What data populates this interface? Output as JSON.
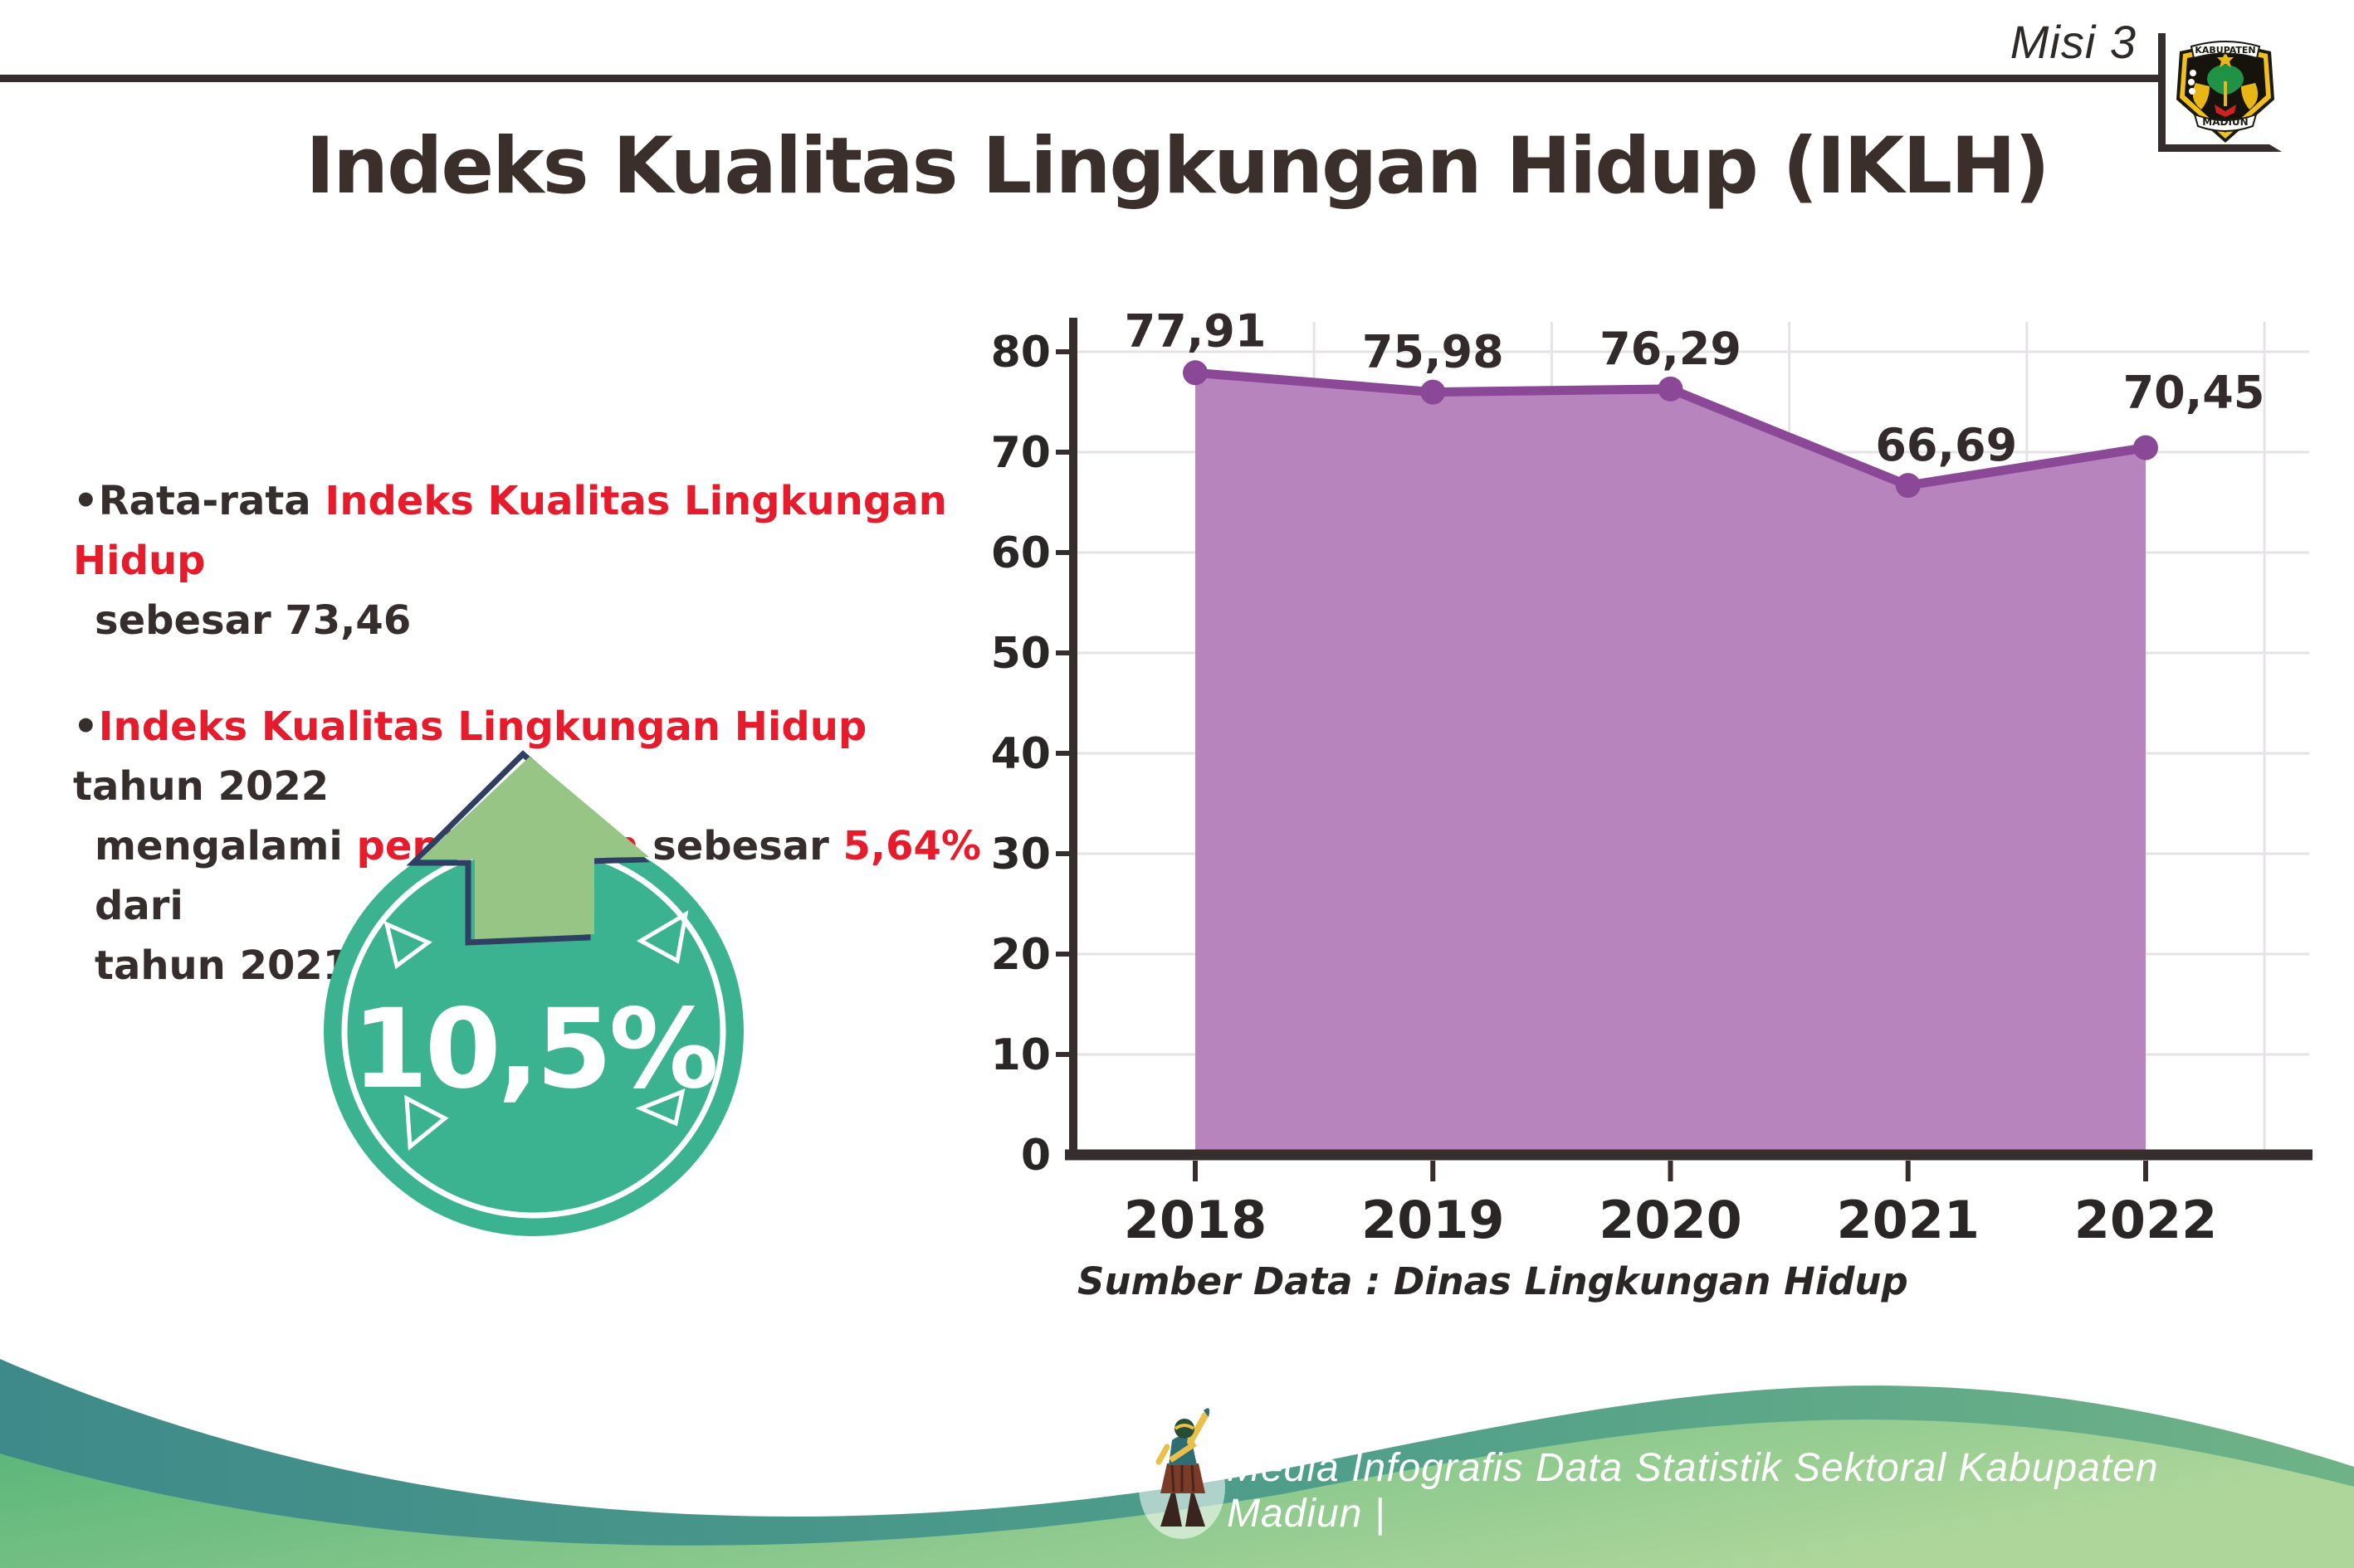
{
  "page": {
    "mission_label": "Misi 3",
    "title": "Indeks Kualitas Lingkungan Hidup (IKLH)"
  },
  "logo": {
    "top_text": "KABUPATEN",
    "bottom_text": "MADIUN"
  },
  "bullets": {
    "bullet_char": "•",
    "b1": {
      "dark1": "Rata-rata ",
      "red1": "Indeks Kualitas Lingkungan Hidup",
      "line2": "sebesar 73,46"
    },
    "b2": {
      "red1": "Indeks Kualitas Lingkungan Hidup",
      "dark1": " tahun 2022",
      "l2_dark1": "mengalami ",
      "l2_red1": "peningkatan",
      "l2_dark2": " sebesar ",
      "l2_red2": "5,64%",
      "l2_dark3": " dari",
      "line3": "tahun 2021"
    }
  },
  "badge": {
    "value": "10,5%"
  },
  "chart_data": {
    "type": "area",
    "title": "",
    "categories": [
      "2018",
      "2019",
      "2020",
      "2021",
      "2022"
    ],
    "values": [
      77.91,
      75.98,
      76.29,
      66.69,
      70.45
    ],
    "value_labels": [
      "77,91",
      "75,98",
      "76,29",
      "66,69",
      "70,45"
    ],
    "y_ticks": [
      0,
      10,
      20,
      30,
      40,
      50,
      60,
      70,
      80
    ],
    "ylim": [
      0,
      87
    ],
    "xlabel": "",
    "ylabel": "",
    "grid": true,
    "legend": false,
    "source": "Sumber Data : Dinas Lingkungan Hidup"
  },
  "footer": {
    "text": "Media Infografis Data Statistik Sektoral Kabupaten Madiun |"
  },
  "colors": {
    "dark_text": "#362e2c",
    "red_text": "#e61c2c",
    "area_fill": "#b784bd",
    "line_color": "#8a4897",
    "grid_color": "#e6e2e6",
    "badge_teal": "#3bb391",
    "arrow_green": "#96c585",
    "arrow_outline_navy": "#2e3f63",
    "wave_teal_left": "#3e8a8a",
    "wave_teal_right": "#6fb287",
    "wave_green_left": "#57b478",
    "wave_green_right": "#aed69b",
    "logo_yellow": "#f2c01e",
    "logo_green": "#1f9246"
  }
}
